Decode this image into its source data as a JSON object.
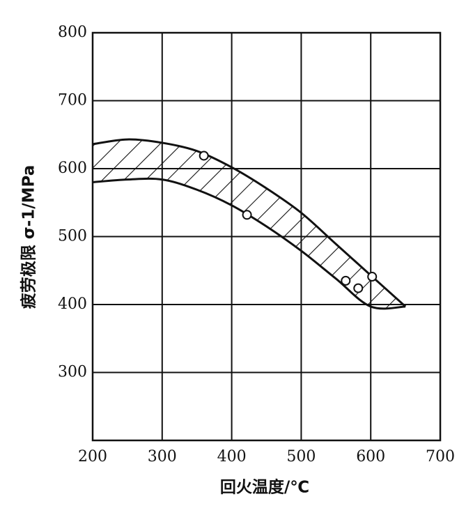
{
  "chart_data": {
    "type": "band",
    "x_label": "回火温度/℃",
    "y_label": "疲劳极限 σ-1/MPa",
    "xlim": [
      200,
      700
    ],
    "xticks": [
      200,
      300,
      400,
      500,
      600,
      700
    ],
    "ylim": [
      200,
      800
    ],
    "yticks": [
      300,
      400,
      500,
      600,
      700,
      800
    ],
    "grid": true,
    "color": "#111111",
    "upper": {
      "x": [
        200,
        250,
        300,
        350,
        400,
        450,
        500,
        550,
        600,
        650
      ],
      "values": [
        636,
        643,
        638,
        626,
        602,
        571,
        535,
        489,
        443,
        397
      ]
    },
    "lower": {
      "x": [
        200,
        250,
        300,
        350,
        400,
        450,
        500,
        550,
        600,
        650
      ],
      "values": [
        580,
        584,
        584,
        569,
        546,
        515,
        479,
        438,
        397,
        397
      ]
    },
    "points": {
      "x": [
        360,
        422,
        564,
        582,
        602
      ],
      "y": [
        619,
        532,
        435,
        424,
        441
      ]
    }
  }
}
